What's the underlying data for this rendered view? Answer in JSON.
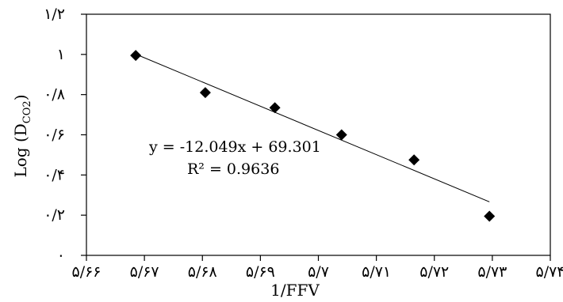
{
  "chart_data": {
    "type": "scatter",
    "xlabel": "1/FFV",
    "ylabel": "Log (D",
    "ylabel_sub": "CO2",
    "ylabel_close": ")",
    "x_ticks": [
      {
        "value": 5.66,
        "label": "۵/۶۶"
      },
      {
        "value": 5.67,
        "label": "۵/۶۷"
      },
      {
        "value": 5.68,
        "label": "۵/۶۸"
      },
      {
        "value": 5.69,
        "label": "۵/۶۹"
      },
      {
        "value": 5.7,
        "label": "۵/۷"
      },
      {
        "value": 5.71,
        "label": "۵/۷۱"
      },
      {
        "value": 5.72,
        "label": "۵/۷۲"
      },
      {
        "value": 5.73,
        "label": "۵/۷۳"
      },
      {
        "value": 5.74,
        "label": "۵/۷۴"
      }
    ],
    "y_ticks": [
      {
        "value": 0,
        "label": "۰"
      },
      {
        "value": 0.2,
        "label": "۰/۲"
      },
      {
        "value": 0.4,
        "label": "۰/۴"
      },
      {
        "value": 0.6,
        "label": "۰/۶"
      },
      {
        "value": 0.8,
        "label": "۰/۸"
      },
      {
        "value": 1.0,
        "label": "۱"
      },
      {
        "value": 1.2,
        "label": "۱/۲"
      }
    ],
    "xlim": [
      5.66,
      5.74
    ],
    "ylim": [
      0,
      1.2
    ],
    "grid": false,
    "points": [
      {
        "x": 5.6685,
        "y": 0.995
      },
      {
        "x": 5.6805,
        "y": 0.81
      },
      {
        "x": 5.6925,
        "y": 0.735
      },
      {
        "x": 5.704,
        "y": 0.6
      },
      {
        "x": 5.7165,
        "y": 0.475
      },
      {
        "x": 5.7295,
        "y": 0.195
      }
    ],
    "trendline": {
      "slope": -12.049,
      "intercept": 69.301,
      "x_range": [
        5.6685,
        5.7295
      ]
    },
    "annotations": {
      "equation": "y = -12.049x + 69.301",
      "r2": "R² = 0.9636"
    }
  }
}
